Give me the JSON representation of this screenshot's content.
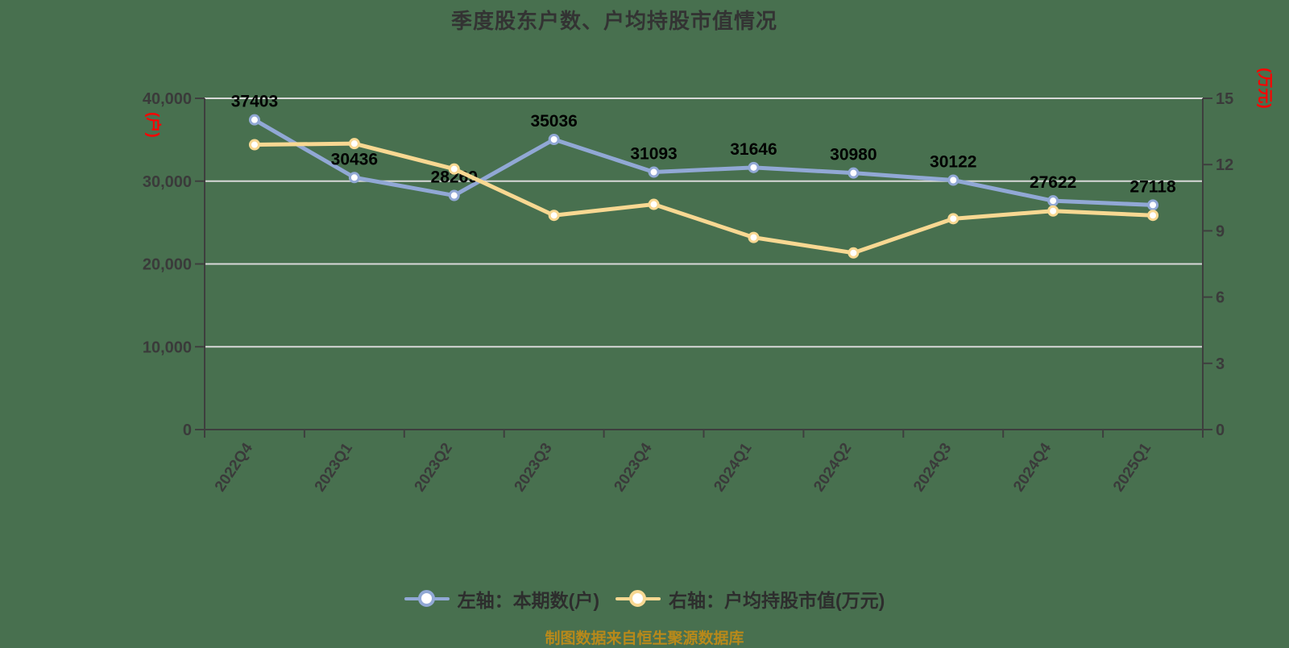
{
  "chart": {
    "title": "季度股东户数、户均持股市值情况",
    "footer": "制图数据来自恒生聚源数据库"
  },
  "legend": {
    "items": [
      {
        "label": "左轴：本期数(户)",
        "color": "#91A8D5"
      },
      {
        "label": "右轴：户均持股市值(万元)",
        "color": "#F8D892"
      }
    ]
  },
  "chart_data": {
    "type": "line",
    "title": "季度股东户数、户均持股市值情况",
    "categories": [
      "2022Q4",
      "2023Q1",
      "2023Q2",
      "2023Q3",
      "2023Q4",
      "2024Q1",
      "2024Q2",
      "2024Q3",
      "2024Q4",
      "2025Q1"
    ],
    "series": [
      {
        "key": "holders",
        "name": "左轴：本期数(户)",
        "yaxis": "left",
        "color": "#91A8D5",
        "show_labels": true,
        "values": [
          37403,
          30436,
          28269,
          35036,
          31093,
          31646,
          30980,
          30122,
          27622,
          27118
        ]
      },
      {
        "key": "avg-market-value",
        "name": "右轴：户均持股市值(万元)",
        "yaxis": "right",
        "color": "#F8D892",
        "show_labels": false,
        "values": [
          12.9,
          12.95,
          11.8,
          9.7,
          10.2,
          8.7,
          8.0,
          9.55,
          9.9,
          9.7
        ]
      }
    ],
    "left_axis": {
      "name": "(户)",
      "min": 0,
      "max": 40000,
      "tick_step": 10000,
      "tick_labels": [
        "0",
        "10,000",
        "20,000",
        "30,000",
        "40,000"
      ]
    },
    "right_axis": {
      "name": "(万元)",
      "min": 0,
      "max": 15,
      "tick_step": 3,
      "tick_labels": [
        "0",
        "3",
        "6",
        "9",
        "12",
        "15"
      ]
    },
    "grid": true,
    "legend_position": "bottom",
    "styles": {
      "background": "#48704F",
      "axis_color": "#3E3E3E",
      "grid_color": "#D8D8D8",
      "tick_label_color": "#3A3A3A",
      "data_label_color": "#000000",
      "axis_name_color": "#FF0000",
      "marker_fill": "#FFFFFF"
    }
  }
}
